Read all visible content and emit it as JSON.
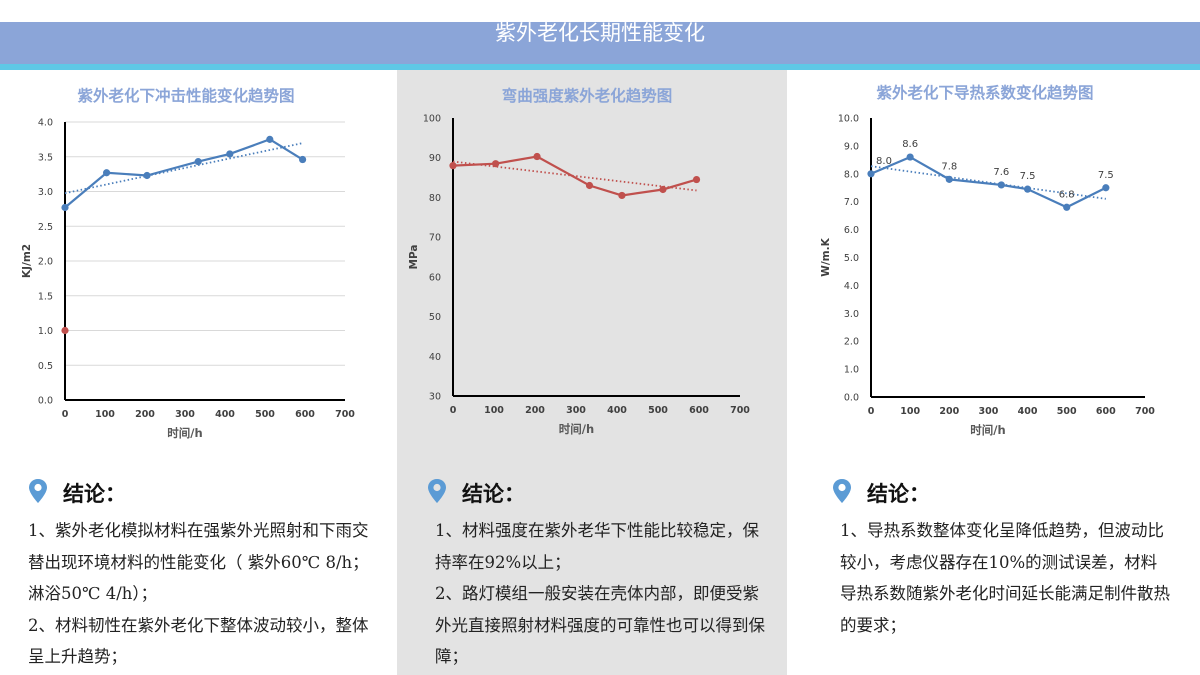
{
  "page": {
    "title": "紫外老化长期性能变化"
  },
  "colors": {
    "header": "#8ba5d8",
    "accent_line": "#5ec8e6",
    "series_blue": "#4a7ebb",
    "series_red": "#c0504d",
    "chart_title": "#8ba5d8",
    "pin": "#5b9bd5"
  },
  "chart_data": [
    {
      "type": "line",
      "title": "紫外老化下冲击性能变化趋势图",
      "xlabel": "时间/h",
      "ylabel": "KJ/m2",
      "xlim": [
        0,
        700
      ],
      "ylim": [
        0.0,
        4.0
      ],
      "xticks": [
        "0",
        "100",
        "200",
        "300",
        "400",
        "500",
        "600",
        "700"
      ],
      "yticks": [
        "0.0",
        "0.5",
        "1.0",
        "1.5",
        "2.0",
        "2.5",
        "3.0",
        "3.5",
        "4.0"
      ],
      "grid": true,
      "trendline": true,
      "series": [
        {
          "color": "#4a7ebb",
          "x": [
            0,
            104,
            205,
            333,
            412,
            512,
            594
          ],
          "y": [
            2.77,
            3.27,
            3.23,
            3.43,
            3.54,
            3.75,
            3.46
          ]
        },
        {
          "color": "#c0504d",
          "x": [
            0
          ],
          "y": [
            1.0
          ]
        }
      ]
    },
    {
      "type": "line",
      "title": "弯曲强度紫外老化趋势图",
      "xlabel": "时间/h",
      "ylabel": "MPa",
      "xlim": [
        0,
        700
      ],
      "ylim": [
        30,
        100
      ],
      "xticks": [
        "0",
        "100",
        "200",
        "300",
        "400",
        "500",
        "600",
        "700"
      ],
      "yticks": [
        "30",
        "40",
        "50",
        "60",
        "70",
        "80",
        "90",
        "100"
      ],
      "grid": false,
      "trendline": true,
      "series": [
        {
          "color": "#c0504d",
          "x": [
            0,
            104,
            205,
            333,
            412,
            512,
            594
          ],
          "y": [
            88.0,
            88.5,
            90.3,
            83.0,
            80.5,
            82.0,
            84.5
          ]
        }
      ]
    },
    {
      "type": "line",
      "title": "紫外老化下导热系数变化趋势图",
      "xlabel": "时间/h",
      "ylabel": "W/m.K",
      "xlim": [
        0,
        700
      ],
      "ylim": [
        0.0,
        10.0
      ],
      "xticks": [
        "0",
        "100",
        "200",
        "300",
        "400",
        "500",
        "600",
        "700"
      ],
      "yticks": [
        "0.0",
        "1.0",
        "2.0",
        "3.0",
        "4.0",
        "5.0",
        "6.0",
        "7.0",
        "8.0",
        "9.0",
        "10.0"
      ],
      "grid": false,
      "trendline": true,
      "data_labels": [
        "8.0",
        "8.6",
        "7.8",
        "7.6",
        "7.5",
        "6.8",
        "7.5"
      ],
      "series": [
        {
          "color": "#4a7ebb",
          "x": [
            0,
            100,
            200,
            333,
            400,
            500,
            600
          ],
          "y": [
            8.0,
            8.6,
            7.8,
            7.6,
            7.45,
            6.8,
            7.5
          ]
        }
      ]
    }
  ],
  "conclusions": [
    {
      "title": "结论：",
      "paragraphs": [
        "1、紫外老化模拟材料在强紫外光照射和下雨交替出现环境材料的性能变化（ 紫外60℃ 8/h；淋浴50℃ 4/h）；",
        "2、材料韧性在紫外老化下整体波动较小，整体呈上升趋势；"
      ]
    },
    {
      "title": "结论：",
      "paragraphs": [
        "1、材料强度在紫外老华下性能比较稳定，保持率在92%以上；",
        "2、路灯模组一般安装在壳体内部，即便受紫外光直接照射材料强度的可靠性也可以得到保障；"
      ]
    },
    {
      "title": "结论：",
      "paragraphs": [
        "1、导热系数整体变化呈降低趋势，但波动比较小，考虑仪器存在10%的测试误差，材料导热系数随紫外老化时间延长能满足制件散热的要求；"
      ]
    }
  ]
}
